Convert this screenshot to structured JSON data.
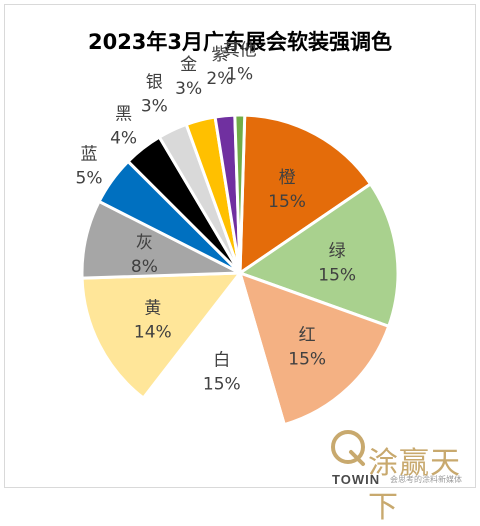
{
  "chart_data": {
    "type": "pie",
    "title": "2023年3月广东展会软装强调色",
    "categories": [
      "橙",
      "绿",
      "红",
      "白",
      "黄",
      "灰",
      "蓝",
      "黑",
      "银",
      "金",
      "紫",
      "其他"
    ],
    "values": [
      15,
      15,
      15,
      15,
      14,
      8,
      5,
      4,
      3,
      3,
      2,
      1
    ],
    "value_labels": [
      "15%",
      "15%",
      "15%",
      "15%",
      "14%",
      "8%",
      "5%",
      "4%",
      "3%",
      "3%",
      "2%",
      "1%"
    ],
    "colors": [
      "#E46C0A",
      "#A9D18E",
      "#F4B183",
      "#FFFFFF",
      "#FFE699",
      "#A6A6A6",
      "#0070C0",
      "#000000",
      "#D9D9D9",
      "#FFC000",
      "#7030A0",
      "#70AD47"
    ],
    "unit": "%",
    "legend": "none"
  },
  "watermark": {
    "text": "涂赢天下",
    "brand": "TOWIN",
    "slogan": "会思考的涂料新媒体"
  }
}
